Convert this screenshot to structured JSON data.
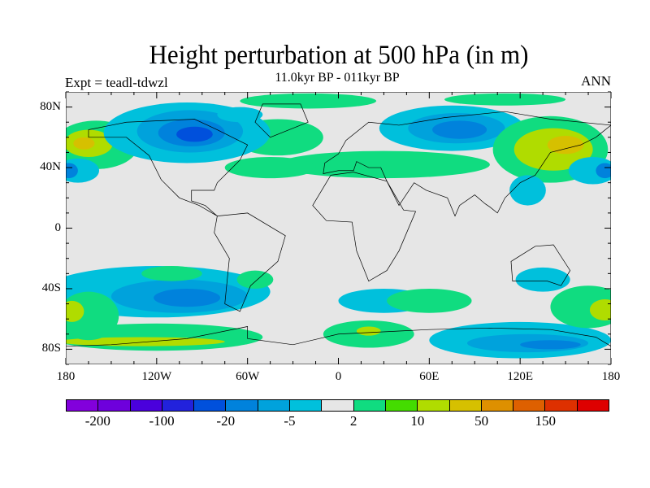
{
  "title": "Height perturbation at 500 hPa (in m)",
  "subtitle": "11.0kyr BP - 011kyr BP",
  "left_label": "Expt = teadl-tdwzl",
  "right_label": "ANN",
  "chart_data": {
    "type": "heatmap",
    "title": "Height perturbation at 500 hPa (in m)",
    "xlabel": "",
    "ylabel": "",
    "xlim": [
      -180,
      180
    ],
    "ylim": [
      -90,
      90
    ],
    "x_ticks": [
      {
        "v": -180,
        "label": "180"
      },
      {
        "v": -120,
        "label": "120W"
      },
      {
        "v": -60,
        "label": "60W"
      },
      {
        "v": 0,
        "label": "0"
      },
      {
        "v": 60,
        "label": "60E"
      },
      {
        "v": 120,
        "label": "120E"
      },
      {
        "v": 180,
        "label": "180"
      }
    ],
    "y_ticks": [
      {
        "v": 80,
        "label": "80N"
      },
      {
        "v": 40,
        "label": "40N"
      },
      {
        "v": 0,
        "label": "0"
      },
      {
        "v": -40,
        "label": "40S"
      },
      {
        "v": -80,
        "label": "80S"
      }
    ],
    "colorbar": {
      "colors": [
        "#8200dc",
        "#6e00dc",
        "#4a00dc",
        "#2222dc",
        "#0050dc",
        "#0082dc",
        "#00a2dc",
        "#00c0dc",
        "#e6e6e6",
        "#10dc80",
        "#44dc00",
        "#b0dc00",
        "#d6c000",
        "#de9000",
        "#de6000",
        "#de3000",
        "#de0000"
      ],
      "labels": [
        {
          "boundary": 1,
          "label": "-200"
        },
        {
          "boundary": 3,
          "label": "-100"
        },
        {
          "boundary": 5,
          "label": "-20"
        },
        {
          "boundary": 7,
          "label": "-5"
        },
        {
          "boundary": 9,
          "label": "2"
        },
        {
          "boundary": 11,
          "label": "10"
        },
        {
          "boundary": 13,
          "label": "50"
        },
        {
          "boundary": 15,
          "label": "150"
        }
      ]
    }
  }
}
